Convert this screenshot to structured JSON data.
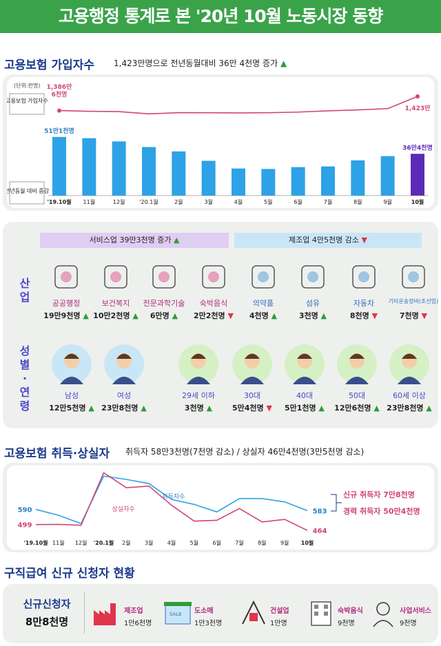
{
  "header": {
    "title": "고용행정 통계로 본 '20년 10월 노동시장 동향"
  },
  "section1": {
    "title": "고용보험 가입자수",
    "summary": "1,423만명으로 전년동월대비 36만 4천명 증가"
  },
  "section2": {
    "title": "고용보험 취득·상실자",
    "summary": "취득자 58만3천명(7천명 감소) / 상실자 46만4천명(3만5천명 감소)"
  },
  "section3": {
    "title": "구직급여 신규 신청자 현황"
  },
  "chart_data": [
    {
      "type": "line+bar",
      "unit_label": "(단위:천명)",
      "line_label": "고용보험 가입자수",
      "bar_label": "전년동월 대비 증감",
      "categories": [
        "'19.10월",
        "11월",
        "12월",
        "'20.1월",
        "2월",
        "3월",
        "4월",
        "5월",
        "6월",
        "7월",
        "8월",
        "9월",
        "10월"
      ],
      "line_values": [
        13866,
        13849,
        13840,
        13782,
        13813,
        13812,
        13807,
        13812,
        13828,
        13860,
        13884,
        13916,
        14230
      ],
      "line_first_label_1": "1,386만",
      "line_first_label_2": "6천명",
      "line_last_label": "1,423만",
      "bar_values": [
        511,
        500,
        472,
        423,
        385,
        303,
        236,
        232,
        248,
        254,
        307,
        344,
        364
      ],
      "bar_first_label": "51만1천명",
      "bar_last_label": "36만4천명",
      "colors": {
        "line": "#d0457a",
        "bar": "#2ea2e6",
        "bar_last": "#5b2bb5"
      }
    },
    {
      "type": "line",
      "categories": [
        "'19.10월",
        "11월",
        "12월",
        "'20.1월",
        "2월",
        "3월",
        "4월",
        "5월",
        "6월",
        "7월",
        "8월",
        "9월",
        "10월"
      ],
      "series": [
        {
          "name": "취득자수",
          "values": [
            590,
            555,
            505,
            790,
            770,
            745,
            650,
            620,
            575,
            655,
            655,
            635,
            583
          ],
          "color": "#2ea2e6"
        },
        {
          "name": "상실자수",
          "values": [
            499,
            500,
            495,
            810,
            720,
            730,
            615,
            520,
            525,
            595,
            515,
            530,
            464
          ],
          "color": "#d0457a"
        }
      ],
      "first_acq": "590",
      "first_loss": "499",
      "last_acq": "583",
      "last_loss": "464",
      "legend_acq": "신규 취득자 7만8천명",
      "legend_loss": "경력 취득자 50만4천명"
    }
  ],
  "industry": {
    "label_chars": [
      "산",
      "업"
    ],
    "service_band": "서비스업 39만3천명 증가",
    "manu_band": "제조업 4만5천명 감소",
    "items": [
      {
        "label": "공공행정",
        "value": "19만9천명",
        "dir": "up"
      },
      {
        "label": "보건복지",
        "value": "10만2천명",
        "dir": "up"
      },
      {
        "label": "전문과학기술",
        "value": "6만명",
        "dir": "up"
      },
      {
        "label": "숙박음식",
        "value": "2만2천명",
        "dir": "down"
      },
      {
        "label": "의약품",
        "value": "4천명",
        "dir": "up"
      },
      {
        "label": "섬유",
        "value": "3천명",
        "dir": "up"
      },
      {
        "label": "자동차",
        "value": "8천명",
        "dir": "down"
      },
      {
        "label": "기타운송장비(조선업)",
        "value": "7천명",
        "dir": "down"
      }
    ]
  },
  "gender_age": {
    "label_chars": [
      "성",
      "별",
      "·",
      "연",
      "령"
    ],
    "items": [
      {
        "label": "남성",
        "value": "12만5천명",
        "dir": "up"
      },
      {
        "label": "여성",
        "value": "23만8천명",
        "dir": "up"
      },
      {
        "label": "29세 이하",
        "value": "3천명",
        "dir": "up"
      },
      {
        "label": "30대",
        "value": "5만4천명",
        "dir": "down"
      },
      {
        "label": "40대",
        "value": "5만1천명",
        "dir": "up"
      },
      {
        "label": "50대",
        "value": "12만6천명",
        "dir": "up"
      },
      {
        "label": "60세 이상",
        "value": "23만8천명",
        "dir": "up"
      }
    ]
  },
  "claims": {
    "total_label": "신규신청자",
    "total_value": "8만8천명",
    "items": [
      {
        "label": "제조업",
        "value": "1만6천명"
      },
      {
        "label": "도소매",
        "value": "1만3천명"
      },
      {
        "label": "건설업",
        "value": "1만명"
      },
      {
        "label": "숙박음식",
        "value": "9천명"
      },
      {
        "label": "사업서비스",
        "value": "9천명"
      }
    ],
    "sale_text": "SALE"
  },
  "arrows": {
    "up": "▲",
    "down": "▼"
  }
}
